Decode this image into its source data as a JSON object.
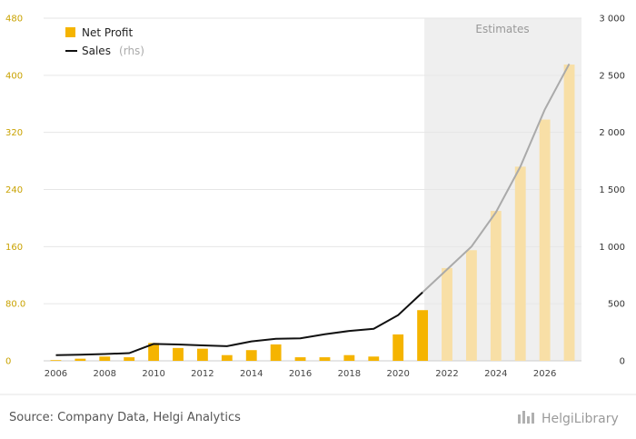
{
  "chart_data": {
    "type": "bar",
    "x": [
      2006,
      2007,
      2008,
      2009,
      2010,
      2011,
      2012,
      2013,
      2014,
      2015,
      2016,
      2017,
      2018,
      2019,
      2020,
      2021,
      2022,
      2023,
      2024,
      2025,
      2026,
      2027
    ],
    "series": [
      {
        "name": "Net Profit",
        "type": "bar",
        "axis": "left",
        "color": "#f5b400",
        "values": [
          1,
          3,
          6,
          5,
          25,
          18,
          17,
          8,
          15,
          23,
          5,
          5,
          8,
          6,
          37,
          71,
          130,
          155,
          210,
          272,
          338,
          415
        ]
      },
      {
        "name": "Sales",
        "name_suffix": "(rhs)",
        "type": "line",
        "axis": "right",
        "color": "#111111",
        "values": [
          50,
          53,
          60,
          68,
          148,
          143,
          135,
          128,
          170,
          193,
          197,
          232,
          262,
          280,
          400,
          600,
          800,
          1000,
          1300,
          1700,
          2200,
          2600
        ]
      }
    ],
    "estimates_from": 2021,
    "estimates_label": "Estimates",
    "estimate_bar_color": "#f8dfa6",
    "estimate_line_color": "#aaaaaa",
    "estimate_shade_color": "#efefef",
    "ylim_left": [
      0,
      480
    ],
    "yticks_left": [
      "0",
      "80.0",
      "160",
      "240",
      "320",
      "400",
      "480"
    ],
    "ylim_right": [
      0,
      3000
    ],
    "yticks_right": [
      "0",
      "500",
      "1 000",
      "1 500",
      "2 000",
      "2 500",
      "3 000"
    ],
    "xtick_labels": [
      "2006",
      "2008",
      "2010",
      "2012",
      "2014",
      "2016",
      "2018",
      "2020",
      "2022",
      "2024",
      "2026"
    ],
    "grid": true,
    "legend_position": "top-left"
  },
  "footer": {
    "source": "Source: Company Data, Helgi Analytics",
    "brand": "HelgiLibrary"
  }
}
